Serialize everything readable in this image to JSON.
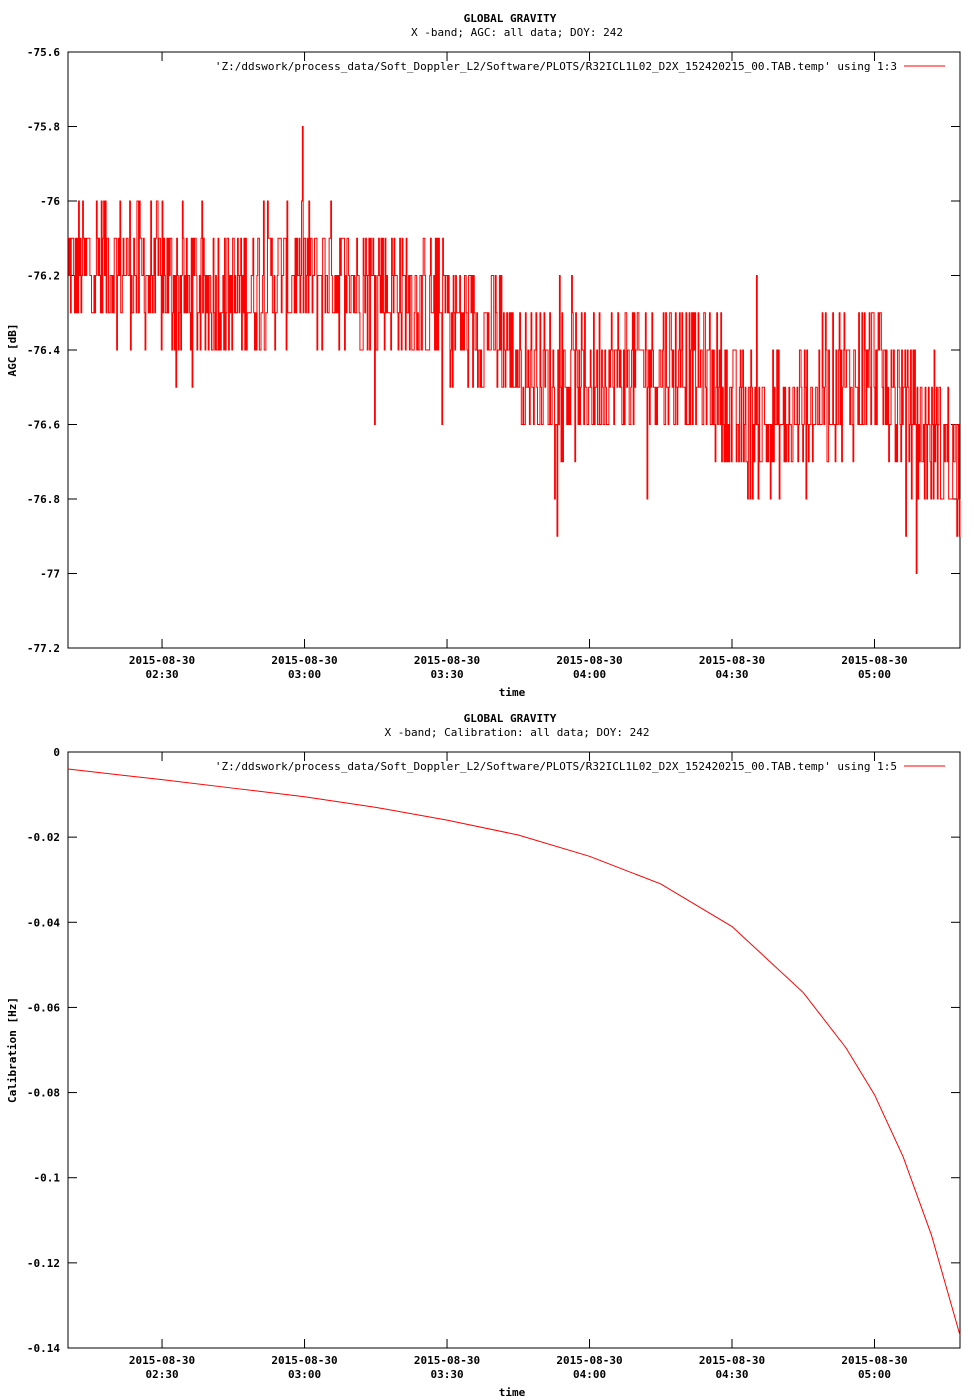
{
  "chart_data": [
    {
      "type": "line",
      "title": "GLOBAL GRAVITY",
      "subtitle": "X -band; AGC: all data; DOY: 242",
      "xlabel": "time",
      "ylabel": "AGC [dB]",
      "legend": {
        "label": "'Z:/ddswork/process_data/Soft_Doppler_L2/Software/PLOTS/R32ICL1L02_D2X_152420215_00.TAB.temp' using 1:3",
        "position": "top-right"
      },
      "color": "#ff0000",
      "xlim": [
        2.17,
        5.3
      ],
      "ylim": [
        -77.2,
        -75.6
      ],
      "xticks": [
        {
          "value": 2.5,
          "date": "2015-08-30",
          "time": "02:30"
        },
        {
          "value": 3.0,
          "date": "2015-08-30",
          "time": "03:00"
        },
        {
          "value": 3.5,
          "date": "2015-08-30",
          "time": "03:30"
        },
        {
          "value": 4.0,
          "date": "2015-08-30",
          "time": "04:00"
        },
        {
          "value": 4.5,
          "date": "2015-08-30",
          "time": "04:30"
        },
        {
          "value": 5.0,
          "date": "2015-08-30",
          "time": "05:00"
        }
      ],
      "yticks": [
        {
          "value": -75.6,
          "label": "-75.6"
        },
        {
          "value": -75.8,
          "label": "-75.8"
        },
        {
          "value": -76.0,
          "label": "-76"
        },
        {
          "value": -76.2,
          "label": "-76.2"
        },
        {
          "value": -76.4,
          "label": "-76.4"
        },
        {
          "value": -76.6,
          "label": "-76.6"
        },
        {
          "value": -76.8,
          "label": "-76.8"
        },
        {
          "value": -77.0,
          "label": "-77"
        },
        {
          "value": -77.2,
          "label": "-77.2"
        }
      ],
      "x": [
        2.17,
        2.3,
        2.45,
        2.6,
        2.75,
        2.9,
        3.05,
        3.2,
        3.35,
        3.5,
        3.65,
        3.8,
        3.95,
        4.1,
        4.25,
        4.4,
        4.55,
        4.7,
        4.85,
        5.0,
        5.15,
        5.3
      ],
      "y": [
        -76.2,
        -76.15,
        -76.2,
        -76.25,
        -76.25,
        -76.2,
        -76.2,
        -76.2,
        -76.25,
        -76.3,
        -76.35,
        -76.45,
        -76.5,
        -76.45,
        -76.45,
        -76.45,
        -76.6,
        -76.6,
        -76.5,
        -76.45,
        -76.6,
        -76.7
      ]
    },
    {
      "type": "line",
      "title": "GLOBAL GRAVITY",
      "subtitle": "X -band; Calibration: all data; DOY: 242",
      "xlabel": "time",
      "ylabel": "Calibration [Hz]",
      "legend": {
        "label": "'Z:/ddswork/process_data/Soft_Doppler_L2/Software/PLOTS/R32ICL1L02_D2X_152420215_00.TAB.temp' using 1:5",
        "position": "top-right"
      },
      "color": "#ff0000",
      "xlim": [
        2.17,
        5.3
      ],
      "ylim": [
        -0.14,
        0
      ],
      "xticks": [
        {
          "value": 2.5,
          "date": "2015-08-30",
          "time": "02:30"
        },
        {
          "value": 3.0,
          "date": "2015-08-30",
          "time": "03:00"
        },
        {
          "value": 3.5,
          "date": "2015-08-30",
          "time": "03:30"
        },
        {
          "value": 4.0,
          "date": "2015-08-30",
          "time": "04:00"
        },
        {
          "value": 4.5,
          "date": "2015-08-30",
          "time": "04:30"
        },
        {
          "value": 5.0,
          "date": "2015-08-30",
          "time": "05:00"
        }
      ],
      "yticks": [
        {
          "value": 0,
          "label": "0"
        },
        {
          "value": -0.02,
          "label": "-0.02"
        },
        {
          "value": -0.04,
          "label": "-0.04"
        },
        {
          "value": -0.06,
          "label": "-0.06"
        },
        {
          "value": -0.08,
          "label": "-0.08"
        },
        {
          "value": -0.1,
          "label": "-0.1"
        },
        {
          "value": -0.12,
          "label": "-0.12"
        },
        {
          "value": -0.14,
          "label": "-0.14"
        }
      ],
      "x": [
        2.17,
        2.5,
        2.75,
        3.0,
        3.25,
        3.5,
        3.75,
        4.0,
        4.25,
        4.5,
        4.75,
        4.9,
        5.0,
        5.1,
        5.2,
        5.3
      ],
      "y": [
        -0.004,
        -0.0065,
        -0.0085,
        -0.0105,
        -0.013,
        -0.016,
        -0.0195,
        -0.0245,
        -0.031,
        -0.041,
        -0.0565,
        -0.0695,
        -0.0805,
        -0.095,
        -0.1135,
        -0.137
      ]
    }
  ]
}
